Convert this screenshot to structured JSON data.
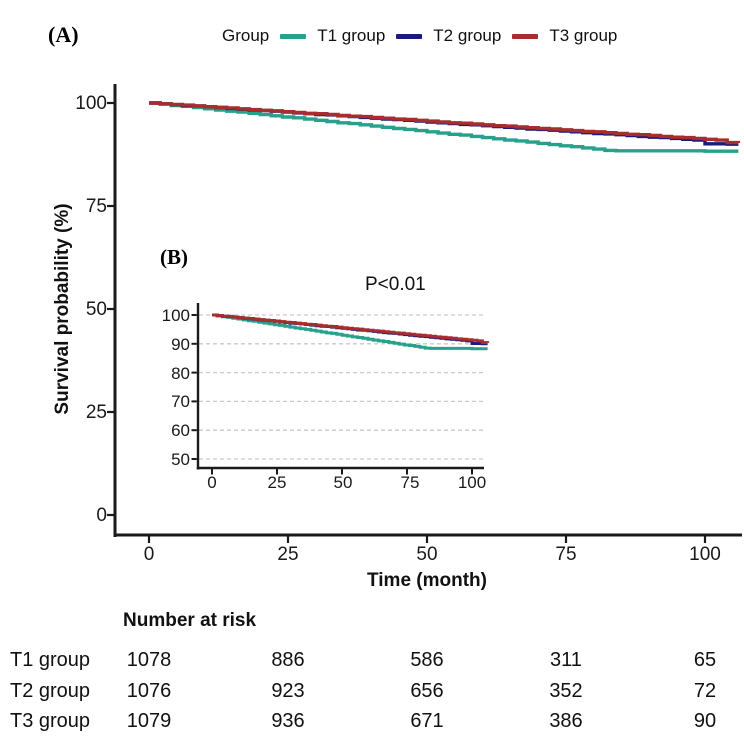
{
  "panels": {
    "a_label": "(A)",
    "b_label": "(B)"
  },
  "legend": {
    "title": "Group",
    "items": [
      {
        "label": "T1 group"
      },
      {
        "label": "T2 group"
      },
      {
        "label": "T3 group"
      }
    ]
  },
  "axes": {
    "y_title": "Survival probability (%)",
    "x_title": "Time (month)",
    "main_y_ticks": [
      "100",
      "75",
      "50",
      "25",
      "0"
    ],
    "main_x_ticks": [
      "0",
      "25",
      "50",
      "75",
      "100"
    ],
    "inset_y_ticks": [
      "100",
      "90",
      "80",
      "70",
      "60",
      "50"
    ],
    "inset_x_ticks": [
      "0",
      "25",
      "50",
      "75",
      "100"
    ]
  },
  "annotations": {
    "p_value": "P<0.01"
  },
  "risk_table": {
    "title": "Number at risk",
    "rows": [
      {
        "label": "T1 group",
        "values": [
          "1078",
          "886",
          "586",
          "311",
          "65"
        ]
      },
      {
        "label": "T2 group",
        "values": [
          "1076",
          "923",
          "656",
          "352",
          "72"
        ]
      },
      {
        "label": "T3 group",
        "values": [
          "1079",
          "936",
          "671",
          "386",
          "90"
        ]
      }
    ]
  },
  "chart_data": {
    "type": "line",
    "subtype": "kaplan-meier-step",
    "title": "",
    "xlabel": "Time (month)",
    "ylabel": "Survival probability (%)",
    "xlim": [
      0,
      106
    ],
    "main_ylim": [
      0,
      100
    ],
    "inset_ylim": [
      50,
      100
    ],
    "x_tick_values": [
      0,
      25,
      50,
      75,
      100
    ],
    "main_y_tick_values": [
      100,
      75,
      50,
      25,
      0
    ],
    "inset_y_tick_values": [
      100,
      90,
      80,
      70,
      60,
      50
    ],
    "inset_grid": "dashed-horizontal",
    "legend_position": "top",
    "p_value": "P<0.01",
    "months": [
      0,
      2,
      4,
      6,
      8,
      10,
      12,
      14,
      16,
      18,
      20,
      22,
      24,
      26,
      28,
      30,
      32,
      34,
      36,
      38,
      40,
      42,
      44,
      46,
      48,
      50,
      52,
      54,
      56,
      58,
      60,
      62,
      64,
      66,
      68,
      70,
      72,
      74,
      76,
      78,
      80,
      82,
      84,
      86,
      88,
      90,
      92,
      94,
      96,
      98,
      100,
      102,
      104,
      106
    ],
    "series": [
      {
        "name": "T1 group",
        "color": "#28A18C",
        "values": [
          100,
          99.7,
          99.4,
          99.2,
          98.9,
          98.6,
          98.3,
          98.0,
          97.8,
          97.5,
          97.2,
          96.9,
          96.6,
          96.4,
          96.1,
          95.8,
          95.5,
          95.2,
          95.0,
          94.7,
          94.4,
          94.1,
          93.8,
          93.6,
          93.3,
          93.0,
          92.7,
          92.4,
          92.2,
          91.9,
          91.6,
          91.3,
          91.0,
          90.8,
          90.5,
          90.2,
          89.9,
          89.6,
          89.4,
          89.1,
          88.8,
          88.5,
          88.4,
          88.4,
          88.4,
          88.4,
          88.4,
          88.4,
          88.4,
          88.4,
          88.3,
          88.3,
          88.3,
          88.3
        ]
      },
      {
        "name": "T2 group",
        "color": "#1A1A7D",
        "values": [
          100,
          99.8,
          99.6,
          99.4,
          99.3,
          99.1,
          98.9,
          98.7,
          98.5,
          98.3,
          98.2,
          98.0,
          97.8,
          97.6,
          97.4,
          97.2,
          97.1,
          96.9,
          96.7,
          96.5,
          96.3,
          96.1,
          96.0,
          95.8,
          95.6,
          95.4,
          95.2,
          95.0,
          94.8,
          94.7,
          94.5,
          94.3,
          94.1,
          93.9,
          93.7,
          93.6,
          93.4,
          93.2,
          93.0,
          92.8,
          92.6,
          92.5,
          92.3,
          92.1,
          91.9,
          91.7,
          91.6,
          91.4,
          91.2,
          91.0,
          90.1,
          90.1,
          90.0,
          90.0
        ]
      },
      {
        "name": "T3 group",
        "color": "#A82D2D",
        "values": [
          100,
          99.8,
          99.6,
          99.5,
          99.3,
          99.1,
          98.9,
          98.8,
          98.6,
          98.4,
          98.2,
          98.1,
          97.9,
          97.7,
          97.5,
          97.4,
          97.2,
          97.0,
          96.8,
          96.7,
          96.5,
          96.3,
          96.1,
          96.0,
          95.8,
          95.6,
          95.4,
          95.2,
          95.1,
          94.9,
          94.7,
          94.5,
          94.4,
          94.2,
          94.0,
          93.8,
          93.7,
          93.5,
          93.3,
          93.1,
          93.0,
          92.8,
          92.6,
          92.4,
          92.3,
          92.1,
          91.9,
          91.7,
          91.6,
          91.4,
          91.2,
          91.0,
          90.4,
          90.3
        ]
      }
    ],
    "risk_table": {
      "title": "Number at risk",
      "time_points": [
        0,
        25,
        50,
        75,
        100
      ],
      "rows": [
        {
          "name": "T1 group",
          "at_risk": [
            1078,
            886,
            586,
            311,
            65
          ]
        },
        {
          "name": "T2 group",
          "at_risk": [
            1076,
            923,
            656,
            352,
            72
          ]
        },
        {
          "name": "T3 group",
          "at_risk": [
            1079,
            936,
            671,
            386,
            90
          ]
        }
      ]
    }
  }
}
